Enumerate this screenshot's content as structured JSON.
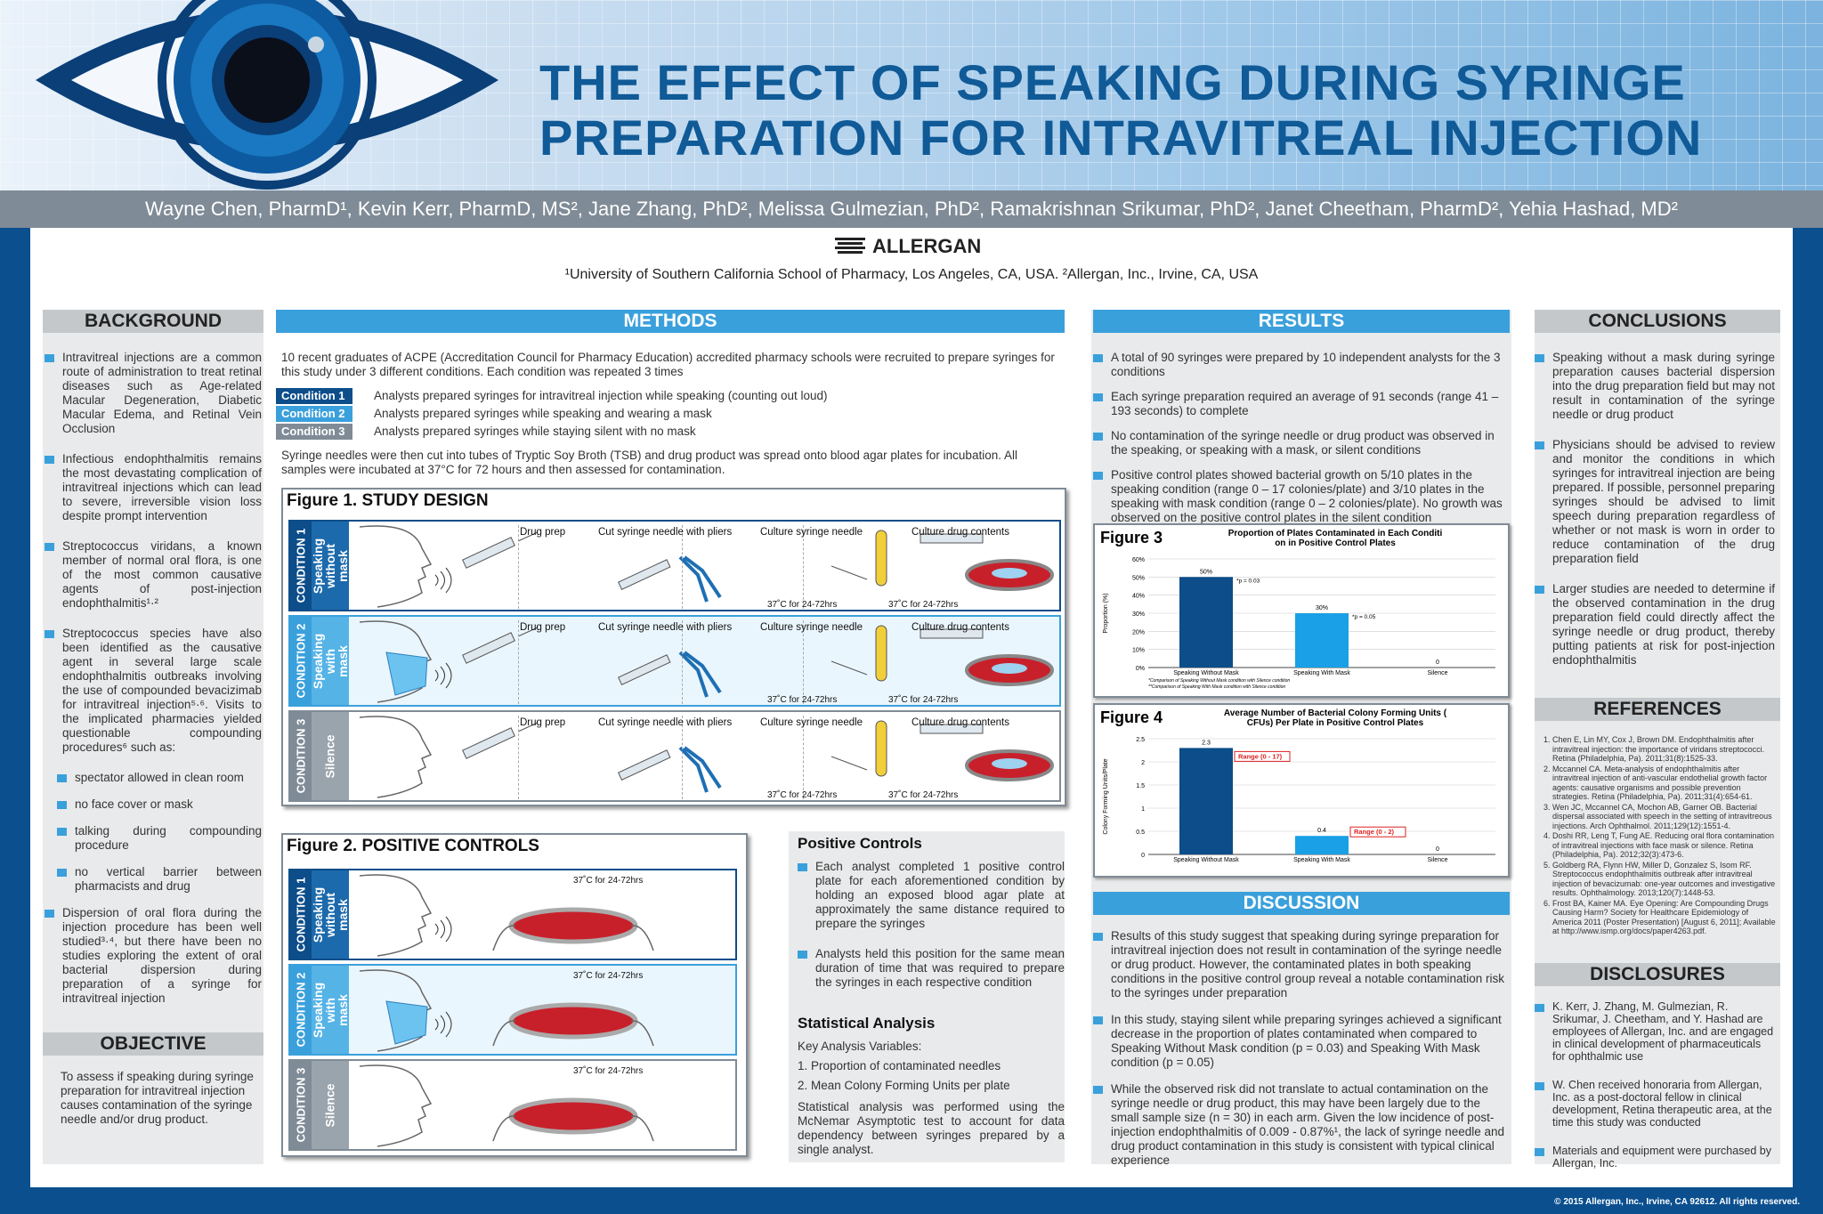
{
  "header": {
    "title_line1": "THE EFFECT OF SPEAKING DURING SYRINGE",
    "title_line2": "PREPARATION FOR INTRAVITREAL INJECTION",
    "authors": "Wayne Chen, PharmD¹, Kevin Kerr, PharmD, MS², Jane Zhang, PhD², Melissa Gulmezian, PhD², Ramakrishnan Srikumar, PhD², Janet Cheetham, PharmD², Yehia Hashad, MD²",
    "logo": "ALLERGAN",
    "affiliations": "¹University of Southern California School of Pharmacy, Los Angeles, CA, USA. ²Allergan, Inc., Irvine, CA, USA"
  },
  "background": {
    "heading": "BACKGROUND",
    "items": [
      "Intravitreal injections are a common route of administration to treat retinal diseases such as Age-related Macular Degeneration, Diabetic Macular Edema, and Retinal Vein Occlusion",
      "Infectious endophthalmitis remains the most devastating complication of intravitreal injections which can lead to severe, irreversible vision loss despite prompt intervention",
      "Streptococcus viridans, a known member of normal oral flora, is one of the most common causative agents of post-injection endophthalmitis¹·²",
      "Streptococcus species have also been identified as the causative agent in several large scale endophthalmitis outbreaks involving the use of compounded bevacizimab for intravitreal injection⁵·⁶. Visits to the implicated pharmacies yielded questionable compounding procedures⁶ such as:"
    ],
    "subitems": [
      "spectator allowed in clean room",
      "no face cover or mask",
      "talking during compounding procedure",
      "no vertical barrier between pharmacists and drug"
    ],
    "last": "Dispersion of oral flora during the injection procedure has been well studied³·⁴, but there have been no studies exploring the extent of oral bacterial dispersion during preparation of a syringe for intravitreal injection"
  },
  "objective": {
    "heading": "OBJECTIVE",
    "text": "To assess if speaking during syringe preparation for intravitreal injection causes contamination of the syringe needle and/or drug product."
  },
  "methods": {
    "heading": "METHODS",
    "intro": "10 recent graduates of ACPE (Accreditation Council for Pharmacy Education) accredited pharmacy schools were recruited to prepare syringes for this study under 3 different conditions. Each condition was repeated 3 times",
    "conditions": [
      {
        "label": "Condition 1",
        "text": "Analysts prepared syringes for intravitreal injection while speaking (counting out loud)"
      },
      {
        "label": "Condition 2",
        "text": "Analysts prepared syringes while speaking and wearing a mask"
      },
      {
        "label": "Condition 3",
        "text": "Analysts prepared syringes while staying silent with no mask"
      }
    ],
    "after": "Syringe needles were then cut into tubes of Tryptic Soy Broth (TSB) and drug product was spread onto blood agar plates for incubation. All samples were incubated at 37°C for 72 hours and then assessed for contamination.",
    "fig1_title": "Figure 1. STUDY DESIGN",
    "fig2_title": "Figure 2. POSITIVE CONTROLS",
    "steps": [
      "Drug prep",
      "Cut syringe needle with pliers",
      "Culture syringe needle",
      "Culture drug contents"
    ],
    "incub": "37˚C for 24-72hrs",
    "rows": [
      {
        "cond": "CONDITION 1",
        "desc": "Speaking\nwithout\nmask"
      },
      {
        "cond": "CONDITION 2",
        "desc": "Speaking\nwith\nmask"
      },
      {
        "cond": "CONDITION 3",
        "desc": "Silence"
      }
    ],
    "pc_heading": "Positive Controls",
    "pc_items": [
      "Each analyst completed 1 positive control plate for each aforementioned condition by holding an exposed blood agar plate at approximately the same distance required to prepare the syringes",
      "Analysts held this position for the same mean duration of time that was required to prepare the syringes in each respective condition"
    ],
    "sa_heading": "Statistical Analysis",
    "sa_lines": [
      "Key Analysis Variables:",
      "1. Proportion of contaminated needles",
      "2. Mean Colony Forming Units per plate"
    ],
    "sa_text": "Statistical analysis was performed using the McNemar Asymptotic test to account for data dependency between syringes prepared by a single analyst."
  },
  "results": {
    "heading": "RESULTS",
    "items": [
      "A total of 90 syringes were prepared by 10 independent analysts for the 3 conditions",
      "Each syringe preparation required an average of 91 seconds (range 41 – 193 seconds) to complete",
      "No contamination of the syringe needle or drug product was observed in the speaking, or speaking with a mask, or silent conditions",
      "Positive control plates showed bacterial growth on 5/10 plates in the speaking condition (range 0 – 17 colonies/plate) and 3/10 plates in the speaking with mask condition (range 0 – 2 colonies/plate). No growth was observed on the positive control plates in the silent condition"
    ]
  },
  "chart_data": [
    {
      "type": "bar",
      "label": "Figure 3",
      "title": "Proportion of Plates Contaminated in Each Condition in Positive Control Plates",
      "categories": [
        "Speaking Without Mask",
        "Speaking With Mask",
        "Silence"
      ],
      "values": [
        50,
        30,
        0
      ],
      "value_labels": [
        "50%",
        "30%",
        "0"
      ],
      "ylabel": "Proportion (%)",
      "ylim": [
        0,
        60
      ],
      "yticks": [
        "0%",
        "10%",
        "20%",
        "30%",
        "40%",
        "50%",
        "60%"
      ],
      "annotations": [
        "*p = 0.03",
        "*p = 0.05"
      ],
      "footnotes": [
        "*Comparison of Speaking Without Mask condition with Silence condition",
        "**Comparison of Speaking With Mask condition with Silence condition"
      ]
    },
    {
      "type": "bar",
      "label": "Figure 4",
      "title": "Average Number of Bacterial Colony Forming Units (CFUs) Per Plate in Positive Control Plates",
      "categories": [
        "Speaking Without Mask",
        "Speaking With Mask",
        "Silence"
      ],
      "values": [
        2.3,
        0.4,
        0
      ],
      "value_labels": [
        "2.3",
        "0.4",
        "0"
      ],
      "ranges": [
        "Range (0 - 17)",
        "Range (0 - 2)"
      ],
      "ylabel": "Colony Forming Units/Plate",
      "ylim": [
        0,
        2.5
      ],
      "yticks": [
        "0",
        "0.5",
        "1",
        "1.5",
        "2",
        "2.5"
      ]
    }
  ],
  "discussion": {
    "heading": "DISCUSSION",
    "items": [
      "Results of this study suggest that speaking during syringe preparation for intravitreal injection does not result in contamination of the syringe needle or drug product. However, the contaminated plates in both speaking conditions in the positive control group reveal a notable contamination risk to the syringes under preparation",
      "In this study, staying silent while preparing syringes achieved a significant decrease in the proportion of plates contaminated when compared to Speaking Without Mask condition (p = 0.03) and Speaking With Mask condition (p = 0.05)",
      "While the observed risk did not translate to actual contamination on the syringe needle or drug product, this may have been largely due to the small sample size (n = 30) in each arm. Given the low incidence of post-injection endophthalmitis of 0.009 - 0.87%¹, the lack of syringe needle and drug product contamination in this study is consistent with typical clinical experience"
    ]
  },
  "conclusions": {
    "heading": "CONCLUSIONS",
    "items": [
      "Speaking without a mask during syringe preparation causes bacterial dispersion into the drug preparation field but may not result in contamination of the syringe needle or drug product",
      "Physicians should be advised to review and monitor the conditions in which syringes for intravitreal injection are being prepared. If possible, personnel preparing syringes should be advised to limit speech during preparation regardless of whether or not mask is worn in order to reduce contamination of the drug preparation field",
      "Larger studies are needed to determine if the observed contamination in the drug preparation field could directly affect the syringe needle or drug product, thereby putting patients at risk for post-injection endophthalmitis"
    ]
  },
  "references": {
    "heading": "REFERENCES",
    "items": [
      "Chen E, Lin MY, Cox J, Brown DM. Endophthalmitis after intravitreal injection: the importance of viridans streptococci. Retina (Philadelphia, Pa). 2011;31(8):1525-33.",
      "Mccannel CA. Meta-analysis of endophthalmitis after intravitreal injection of anti-vascular endothelial growth factor agents: causative organisms and possible prevention strategies. Retina (Philadelphia, Pa). 2011;31(4):654-61.",
      "Wen JC, Mccannel CA, Mochon AB, Garner OB. Bacterial dispersal associated with speech in the setting of intravitreous injections. Arch Ophthalmol. 2011;129(12):1551-4.",
      "Doshi RR, Leng T, Fung AE. Reducing oral flora contamination of intravitreal injections with face mask or silence. Retina (Philadelphia, Pa). 2012;32(3):473-6.",
      "Goldberg RA, Flynn HW, Miller D, Gonzalez S, Isom RF. Streptococcus endophthalmitis outbreak after intravitreal injection of bevacizumab: one-year outcomes and investigative results. Ophthalmology. 2013;120(7):1448-53.",
      "Frost BA, Kainer MA. Eye Opening: Are Compounding Drugs Causing Harm? Society for Healthcare Epidemiology of America 2011 (Poster Presentation) [August 6, 2011]; Available at http://www.ismp.org/docs/paper4263.pdf."
    ]
  },
  "disclosures": {
    "heading": "DISCLOSURES",
    "items": [
      "K. Kerr, J. Zhang, M. Gulmezian, R. Srikumar, J. Cheetham, and Y. Hashad are employees of Allergan, Inc. and are engaged in clinical development of pharmaceuticals for ophthalmic use",
      "W. Chen received honoraria from Allergan, Inc. as a post-doctoral fellow in clinical development, Retina therapeutic area, at the time this study was conducted",
      "Materials and equipment were purchased by Allergan, Inc."
    ]
  },
  "footer": {
    "copyright": "© 2015 Allergan, Inc., Irvine, CA 92612. All rights reserved."
  },
  "colors": {
    "navy": "#0c4d8a",
    "accent": "#3aa0dc",
    "gray": "#7f8b96"
  }
}
